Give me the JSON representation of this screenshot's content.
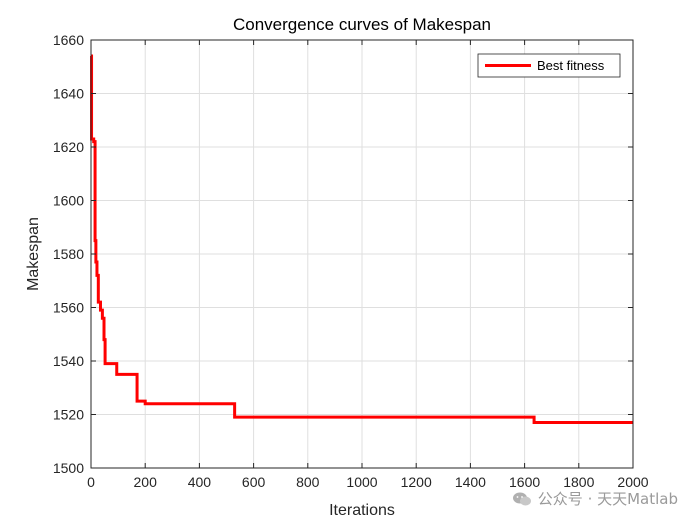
{
  "chart_data": {
    "type": "line",
    "title": "Convergence curves of Makespan",
    "xlabel": "Iterations",
    "ylabel": "Makespan",
    "xlim": [
      0,
      2000
    ],
    "ylim": [
      1500,
      1660
    ],
    "xticks": [
      0,
      200,
      400,
      600,
      800,
      1000,
      1200,
      1400,
      1600,
      1800,
      2000
    ],
    "yticks": [
      1500,
      1520,
      1540,
      1560,
      1580,
      1600,
      1620,
      1640,
      1660
    ],
    "grid": true,
    "legend_position": "top-right",
    "series": [
      {
        "name": "Best fitness",
        "color": "#ff0000",
        "step": true,
        "x": [
          1,
          2,
          10,
          15,
          18,
          22,
          27,
          35,
          42,
          48,
          52,
          57,
          95,
          170,
          200,
          530,
          1635,
          2000
        ],
        "y": [
          1654,
          1623,
          1622,
          1585,
          1577,
          1572,
          1562,
          1559,
          1556,
          1548,
          1539,
          1539,
          1535,
          1525,
          1524,
          1519,
          1517,
          1517
        ]
      }
    ]
  },
  "watermark": {
    "text": "公众号 · 天天Matlab",
    "color": "#9a9a9a"
  }
}
